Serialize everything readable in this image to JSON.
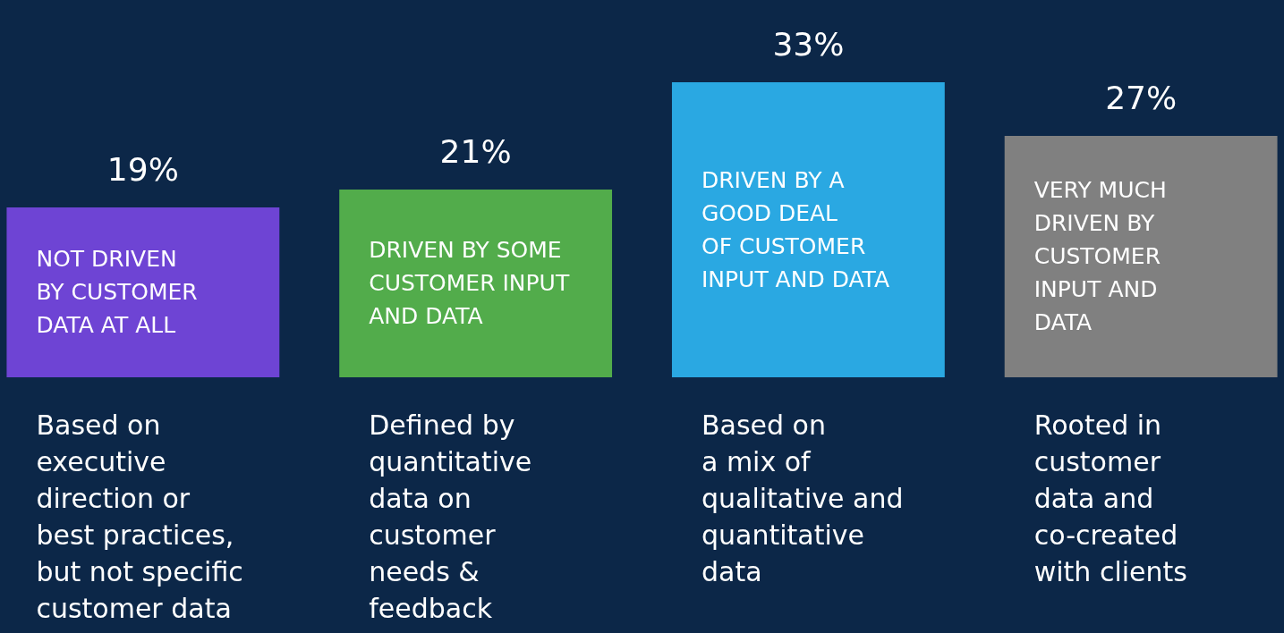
{
  "chart_data": {
    "type": "bar",
    "categories": [
      "NOT DRIVEN\nBY CUSTOMER\nDATA AT ALL",
      "DRIVEN BY SOME\nCUSTOMER INPUT\nAND DATA",
      "DRIVEN BY A\nGOOD DEAL\nOF CUSTOMER\nINPUT AND DATA",
      "VERY MUCH\nDRIVEN BY\nCUSTOMER\nINPUT AND\nDATA"
    ],
    "values": [
      19,
      21,
      33,
      27
    ],
    "value_labels": [
      "19%",
      "21%",
      "33%",
      "27%"
    ],
    "colors": [
      "#6e44d4",
      "#52ac4b",
      "#2aa8e2",
      "#808080"
    ],
    "annotations": [
      "Based on\nexecutive\ndirection or\nbest practices,\nbut not specific\ncustomer data",
      "Defined by\nquantitative\ndata on\ncustomer\nneeds &\nfeedback",
      "Based on\na mix of\nqualitative and\nquantitative\ndata",
      "Rooted in\ncustomer\ndata and\nco-created\nwith clients"
    ],
    "relative": false
  }
}
